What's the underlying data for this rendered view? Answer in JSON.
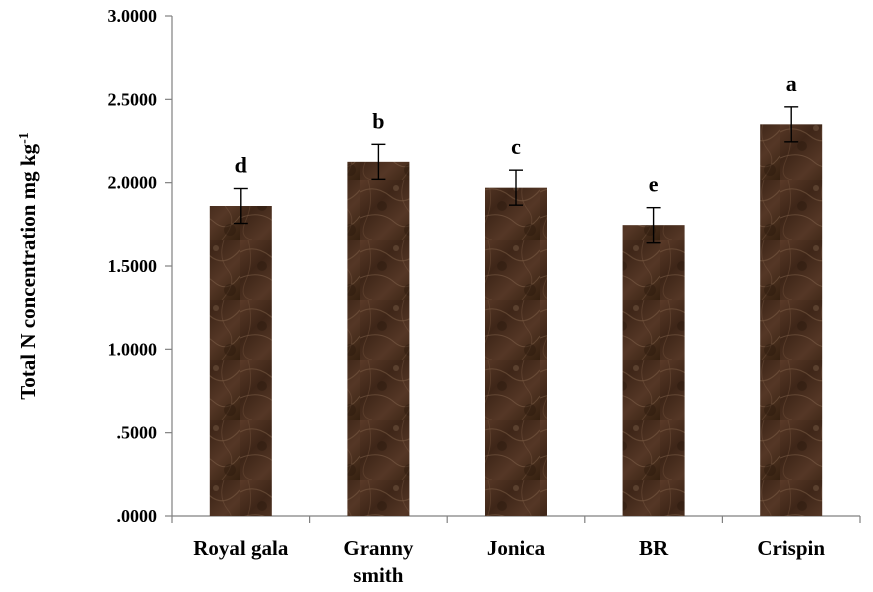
{
  "chart_data": {
    "type": "bar",
    "ylabel": "Total N concentration mg kg",
    "ylabel_superscript": "-1",
    "xlabel": "",
    "title": "",
    "ylim": [
      0,
      3
    ],
    "yticks": [
      ".0000",
      ".5000",
      "1.0000",
      "1.5000",
      "2.0000",
      "2.5000",
      "3.0000"
    ],
    "categories": [
      "Royal gala",
      "Granny smith",
      "Jonica",
      "BR",
      "Crispin"
    ],
    "category_lines": [
      [
        "Royal gala"
      ],
      [
        "Granny",
        "smith"
      ],
      [
        "Jonica"
      ],
      [
        "BR"
      ],
      [
        "Crispin"
      ]
    ],
    "values": [
      1.86,
      2.125,
      1.97,
      1.745,
      2.35
    ],
    "errors": [
      0.105,
      0.105,
      0.105,
      0.105,
      0.105
    ],
    "significance_letters": [
      "d",
      "b",
      "c",
      "e",
      "a"
    ],
    "bar_color": "#4a2e1f",
    "grid": false,
    "legend": "none"
  }
}
